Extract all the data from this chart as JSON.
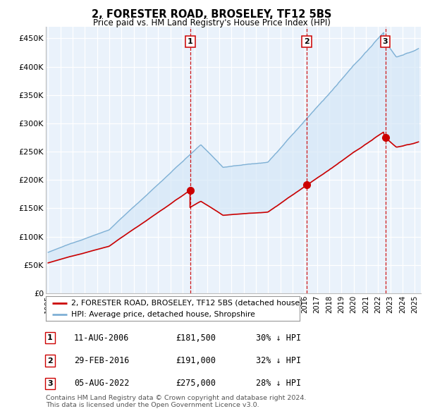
{
  "title": "2, FORESTER ROAD, BROSELEY, TF12 5BS",
  "subtitle": "Price paid vs. HM Land Registry's House Price Index (HPI)",
  "hpi_color": "#7eb0d5",
  "sale_color": "#cc0000",
  "fill_color": "#d6e8f7",
  "background_chart": "#eaf2fb",
  "ylim": [
    0,
    470000
  ],
  "yticks": [
    0,
    50000,
    100000,
    150000,
    200000,
    250000,
    300000,
    350000,
    400000,
    450000
  ],
  "ytick_labels": [
    "£0",
    "£50K",
    "£100K",
    "£150K",
    "£200K",
    "£250K",
    "£300K",
    "£350K",
    "£400K",
    "£450K"
  ],
  "xlim_start": 1994.8,
  "xlim_end": 2025.5,
  "sales": [
    {
      "year": 2006.61,
      "price": 181500,
      "label": "1"
    },
    {
      "year": 2016.16,
      "price": 191000,
      "label": "2"
    },
    {
      "year": 2022.59,
      "price": 275000,
      "label": "3"
    }
  ],
  "sale_table": [
    {
      "num": "1",
      "date": "11-AUG-2006",
      "price": "£181,500",
      "pct": "30% ↓ HPI"
    },
    {
      "num": "2",
      "date": "29-FEB-2016",
      "price": "£191,000",
      "pct": "32% ↓ HPI"
    },
    {
      "num": "3",
      "date": "05-AUG-2022",
      "price": "£275,000",
      "pct": "28% ↓ HPI"
    }
  ],
  "legend_sale": "2, FORESTER ROAD, BROSELEY, TF12 5BS (detached house)",
  "legend_hpi": "HPI: Average price, detached house, Shropshire",
  "footer": "Contains HM Land Registry data © Crown copyright and database right 2024.\nThis data is licensed under the Open Government Licence v3.0."
}
